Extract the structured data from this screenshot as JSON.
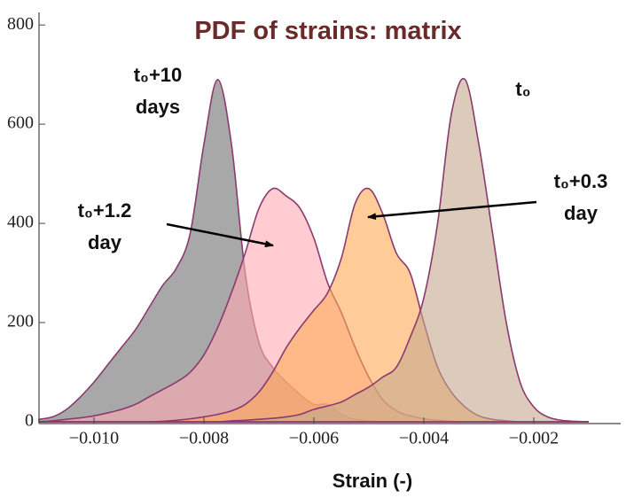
{
  "chart_data": {
    "type": "area",
    "title": "PDF of strains: matrix",
    "x_label": "Strain (-)",
    "xlim": [
      -0.011,
      -0.0005
    ],
    "ylim": [
      0,
      820
    ],
    "xticks": [
      {
        "value": -0.01,
        "label": "−0.010"
      },
      {
        "value": -0.008,
        "label": "−0.008"
      },
      {
        "value": -0.006,
        "label": "−0.006"
      },
      {
        "value": -0.004,
        "label": "−0.004"
      },
      {
        "value": -0.002,
        "label": "−0.002"
      }
    ],
    "yticks": [
      0,
      200,
      400,
      600,
      800
    ],
    "x": [
      -0.011,
      -0.01075,
      -0.0105,
      -0.01025,
      -0.01,
      -0.00975,
      -0.0095,
      -0.00925,
      -0.009,
      -0.00875,
      -0.0085,
      -0.00825,
      -0.008,
      -0.00775,
      -0.0075,
      -0.00725,
      -0.007,
      -0.00675,
      -0.0065,
      -0.00625,
      -0.006,
      -0.00575,
      -0.0055,
      -0.00525,
      -0.005,
      -0.00475,
      -0.0045,
      -0.00425,
      -0.004,
      -0.00375,
      -0.0035,
      -0.00325,
      -0.003,
      -0.00275,
      -0.0025,
      -0.00225,
      -0.002,
      -0.00175,
      -0.0015,
      -0.00125,
      -0.001
    ],
    "series": [
      {
        "color": "#6e6e6e",
        "values": [
          5,
          10,
          25,
          50,
          80,
          115,
          150,
          185,
          230,
          275,
          310,
          380,
          560,
          690,
          560,
          300,
          160,
          110,
          80,
          55,
          35,
          35,
          15,
          5,
          2,
          0,
          0,
          0,
          0,
          0,
          0,
          0,
          0,
          0,
          0,
          0,
          0,
          0,
          0,
          0,
          0
        ]
      },
      {
        "color": "#ffaab4",
        "values": [
          0,
          2,
          5,
          8,
          12,
          18,
          25,
          35,
          50,
          65,
          80,
          100,
          135,
          190,
          260,
          340,
          430,
          470,
          455,
          430,
          370,
          280,
          220,
          150,
          90,
          45,
          22,
          12,
          6,
          3,
          1,
          0,
          0,
          0,
          0,
          0,
          0,
          0,
          0,
          0,
          0
        ]
      },
      {
        "color": "#ffaa55",
        "values": [
          0,
          0,
          0,
          0,
          0,
          0,
          0,
          0,
          0,
          1,
          3,
          6,
          10,
          15,
          22,
          35,
          60,
          100,
          150,
          190,
          225,
          260,
          330,
          440,
          470,
          420,
          340,
          300,
          200,
          110,
          60,
          30,
          12,
          5,
          2,
          0,
          0,
          0,
          0,
          0,
          0
        ]
      },
      {
        "color": "#c4a88c",
        "values": [
          0,
          0,
          0,
          0,
          0,
          0,
          0,
          0,
          0,
          0,
          0,
          0,
          0,
          0,
          2,
          3,
          5,
          7,
          10,
          15,
          25,
          32,
          40,
          55,
          70,
          90,
          110,
          170,
          250,
          400,
          620,
          690,
          560,
          380,
          200,
          80,
          30,
          10,
          3,
          1,
          0
        ]
      }
    ],
    "annotations": [
      {
        "lines": [
          "t₀+10",
          "days"
        ]
      },
      {
        "lines": [
          "t₀"
        ]
      },
      {
        "lines": [
          "t₀+0.3",
          "day"
        ]
      },
      {
        "lines": [
          "t₀+1.2",
          "day"
        ]
      }
    ]
  }
}
